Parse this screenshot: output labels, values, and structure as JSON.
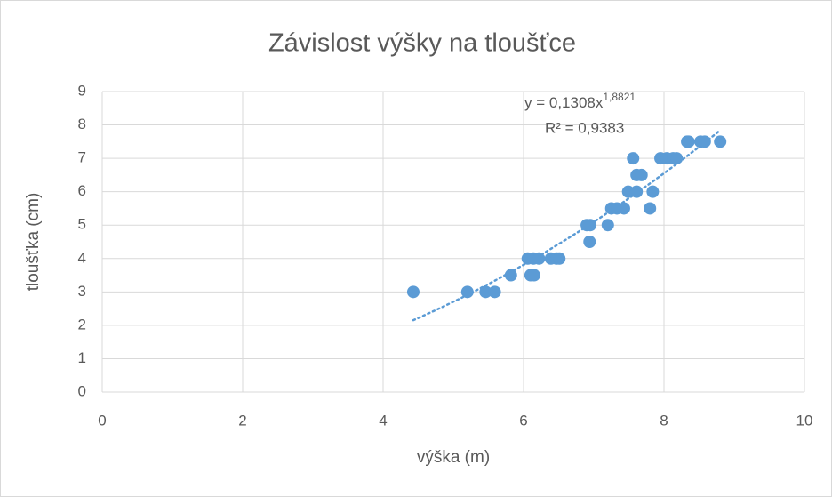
{
  "chart_data": {
    "type": "scatter",
    "title": "Závislost výšky na tloušťce",
    "x_label": "výška (m)",
    "y_label": "tloušťka (cm)",
    "series": [
      {
        "color": "#5b9bd5",
        "x": [
          4.43,
          5.2,
          5.46,
          5.59,
          5.82,
          6.1,
          6.15,
          6.06,
          6.14,
          6.22,
          6.39,
          6.47,
          6.51,
          6.94,
          6.9,
          6.95,
          7.2,
          7.25,
          7.33,
          7.43,
          7.8,
          7.49,
          7.61,
          7.84,
          7.61,
          7.68,
          7.56,
          7.95,
          8.04,
          8.13,
          8.18,
          8.33,
          8.35,
          8.52,
          8.58,
          8.8
        ],
        "values": [
          3,
          3,
          3,
          3,
          3.5,
          3.5,
          3.5,
          4,
          4,
          4,
          4,
          4,
          4,
          4.5,
          5,
          5,
          5,
          5.5,
          5.5,
          5.5,
          5.5,
          6,
          6,
          6,
          6.5,
          6.5,
          7,
          7,
          7,
          7,
          7,
          7.5,
          7.5,
          7.5,
          7.5,
          7.5
        ]
      }
    ],
    "trendline": {
      "type": "power",
      "coefficient": 0.1308,
      "exponent": 1.8821,
      "equation": "y = 0,1308x",
      "exponent_label": "1,8821",
      "r2_label": "R² = 0,9383"
    },
    "xlim": [
      0,
      10
    ],
    "xticks": [
      0,
      2,
      4,
      6,
      8,
      10
    ],
    "ylim": [
      0,
      9
    ],
    "yticks": [
      0,
      1,
      2,
      3,
      4,
      5,
      6,
      7,
      8,
      9
    ],
    "grid": true
  }
}
